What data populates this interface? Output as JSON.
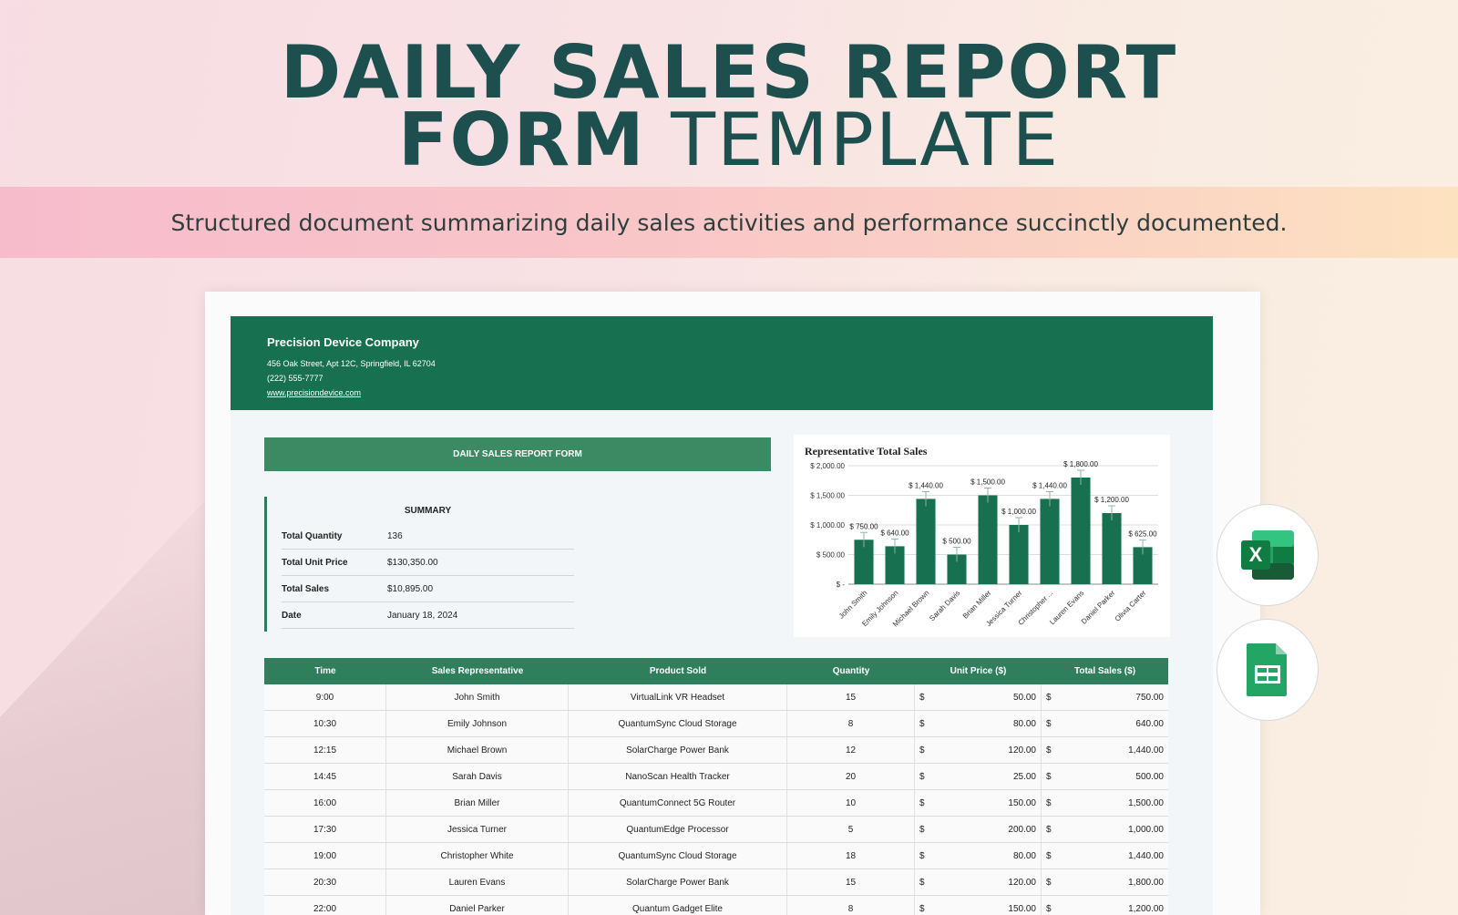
{
  "hero": {
    "title_line1": "DAILY SALES REPORT",
    "title_line2_bold": "FORM",
    "title_line2_light": "TEMPLATE",
    "subtitle": "Structured document summarizing daily sales activities and performance succinctly documented."
  },
  "company": {
    "name": "Precision Device Company",
    "address": "456 Oak Street, Apt 12C, Springfield, IL 62704",
    "phone": "(222) 555-7777",
    "website": "www.precisiondevice.com"
  },
  "form_title": "DAILY SALES REPORT FORM",
  "summary": {
    "heading": "SUMMARY",
    "rows": [
      {
        "label": "Total Quantity",
        "value": "136"
      },
      {
        "label": "Total Unit Price",
        "value": "$130,350.00"
      },
      {
        "label": "Total Sales",
        "value": "$10,895.00"
      },
      {
        "label": "Date",
        "value": "January 18, 2024"
      }
    ]
  },
  "chart_data": {
    "type": "bar",
    "title": "Representative Total Sales",
    "categories": [
      "John Smith",
      "Emily Johnson",
      "Michael Brown",
      "Sarah Davis",
      "Brian Miller",
      "Jessica Turner",
      "Christopher ...",
      "Lauren Evans",
      "Daniel Parker",
      "Olivia Carter"
    ],
    "values": [
      750,
      640,
      1440,
      500,
      1500,
      1000,
      1440,
      1800,
      1200,
      625
    ],
    "data_labels": [
      "$ 750.00",
      "$ 640.00",
      "$ 1,440.00",
      "$ 500.00",
      "$ 1,500.00",
      "$ 1,000.00",
      "$ 1,440.00",
      "$ 1,800.00",
      "$ 1,200.00",
      "$ 625.00"
    ],
    "yticks": [
      0,
      500,
      1000,
      1500,
      2000
    ],
    "ytick_labels": [
      "$ -",
      "$ 500.00",
      "$ 1,000.00",
      "$ 1,500.00",
      "$ 2,000.00"
    ],
    "ylim": [
      0,
      2000
    ],
    "bar_color": "#17704f",
    "grid": true
  },
  "table": {
    "headers": [
      "Time",
      "Sales Representative",
      "Product Sold",
      "Quantity",
      "Unit Price ($)",
      "Total Sales ($)"
    ],
    "currency": "$",
    "rows": [
      [
        "9:00",
        "John Smith",
        "VirtualLink VR Headset",
        "15",
        "50.00",
        "750.00"
      ],
      [
        "10:30",
        "Emily Johnson",
        "QuantumSync Cloud Storage",
        "8",
        "80.00",
        "640.00"
      ],
      [
        "12:15",
        "Michael Brown",
        "SolarCharge Power Bank",
        "12",
        "120.00",
        "1,440.00"
      ],
      [
        "14:45",
        "Sarah Davis",
        "NanoScan Health Tracker",
        "20",
        "25.00",
        "500.00"
      ],
      [
        "16:00",
        "Brian Miller",
        "QuantumConnect 5G Router",
        "10",
        "150.00",
        "1,500.00"
      ],
      [
        "17:30",
        "Jessica Turner",
        "QuantumEdge Processor",
        "5",
        "200.00",
        "1,000.00"
      ],
      [
        "19:00",
        "Christopher White",
        "QuantumSync Cloud Storage",
        "18",
        "80.00",
        "1,440.00"
      ],
      [
        "20:30",
        "Lauren Evans",
        "SolarCharge Power Bank",
        "15",
        "120.00",
        "1,800.00"
      ],
      [
        "22:00",
        "Daniel Parker",
        "Quantum Gadget Elite",
        "8",
        "150.00",
        "1,200.00"
      ]
    ]
  },
  "icons": {
    "excel": {
      "name": "excel-icon",
      "letter": "X",
      "color": "#1d6f42"
    },
    "sheets": {
      "name": "google-sheets-icon",
      "color": "#23a566"
    }
  },
  "colors": {
    "brand_green": "#17704f",
    "title_teal": "#1d4f4f"
  }
}
